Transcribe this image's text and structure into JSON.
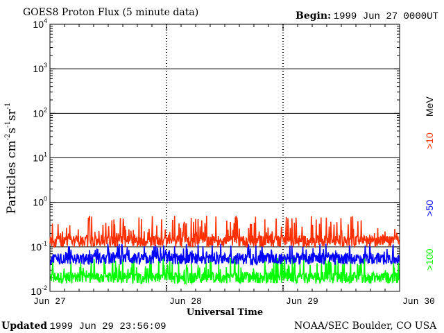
{
  "header": {
    "title": "GOES8 Proton Flux (5 minute data)",
    "begin_label": "Begin:",
    "begin_value": "1999 Jun 27 0000UT"
  },
  "footer": {
    "updated_label": "Updated",
    "updated_value": "1999 Jun 29 23:56:09",
    "credit": "NOAA/SEC Boulder, CO USA"
  },
  "chart_data": {
    "type": "line",
    "title": "GOES8 Proton Flux (5 minute data)",
    "xlabel": "Universal Time",
    "ylabel": "Particles cm-2s-1sr-1",
    "yscale": "log",
    "ylim": [
      0.01,
      10000
    ],
    "y_tick_labels": [
      {
        "value": 0.01,
        "base": "10",
        "exp": "-2"
      },
      {
        "value": 0.1,
        "base": "10",
        "exp": "-1"
      },
      {
        "value": 1,
        "base": "10",
        "exp": "0"
      },
      {
        "value": 10,
        "base": "10",
        "exp": "1"
      },
      {
        "value": 100,
        "base": "10",
        "exp": "2"
      },
      {
        "value": 1000,
        "base": "10",
        "exp": "3"
      },
      {
        "value": 10000,
        "base": "10",
        "exp": "4"
      }
    ],
    "x_tick_labels": [
      "Jun 27",
      "Jun 28",
      "Jun 29",
      "Jun 30"
    ],
    "xlim_days": [
      0,
      3
    ],
    "grid": true,
    "legend_position": "right",
    "series": [
      {
        "name": ">10 MeV",
        "color": "#ff3000",
        "baseline": 0.1,
        "peak": 0.5
      },
      {
        "name": ">50",
        "color": "#0000ff",
        "baseline": 0.04,
        "peak": 0.12
      },
      {
        "name": ">100",
        "color": "#00ff00",
        "baseline": 0.015,
        "peak": 0.06
      }
    ],
    "legend": [
      {
        "text": ">10",
        "color": "#ff3000"
      },
      {
        "text": "MeV",
        "color": "#000000"
      },
      {
        "text": ">50",
        "color": "#0000ff"
      },
      {
        "text": ">100",
        "color": "#00ff00"
      }
    ]
  }
}
